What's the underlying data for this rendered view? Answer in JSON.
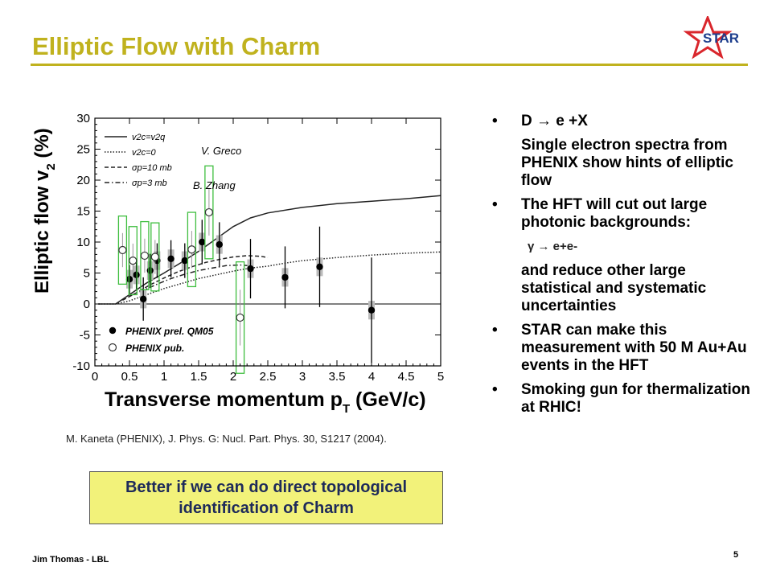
{
  "slide": {
    "title": "Elliptic Flow with Charm",
    "logo_text": "STAR",
    "citation": "M. Kaneta (PHENIX), J. Phys. G: Nucl. Part. Phys. 30, S1217 (2004).",
    "note": "Better if we can do direct topological identification of Charm",
    "footer_left": "Jim Thomas - LBL",
    "page_number": "5",
    "colors": {
      "title": "#c0b21e",
      "note_bg": "#f2f27a",
      "note_text": "#1e2a5a",
      "logo": "#d9262c"
    }
  },
  "bullets": {
    "b1": "D → e +X",
    "b1_sub": "Single electron spectra from PHENIX show hints of elliptic flow",
    "b2": "The HFT will cut out large photonic backgrounds:",
    "b2_sub": "γ → e+e-",
    "b2_sub2": "and reduce other large statistical and systematic uncertainties",
    "b3": "STAR can make this measurement with 50 M Au+Au events in the HFT",
    "b4": "Smoking gun for thermalization at RHIC!"
  },
  "chart_data": {
    "type": "scatter",
    "xlabel": "Transverse momentum p",
    "xlabel_sub": "T",
    "xlabel_unit": " (GeV/c)",
    "ylabel": "Elliptic flow v",
    "ylabel_sub": "2",
    "ylabel_unit": " (%)",
    "xlim": [
      0,
      5
    ],
    "ylim": [
      -10,
      30
    ],
    "xticks": [
      "0",
      "0.5",
      "1",
      "1.5",
      "2",
      "2.5",
      "3",
      "3.5",
      "4",
      "4.5",
      "5"
    ],
    "yticks": [
      "-10",
      "-5",
      "0",
      "5",
      "10",
      "15",
      "20",
      "25",
      "30"
    ],
    "model_authors": [
      "V. Greco",
      "B. Zhang"
    ],
    "curve_legend": [
      "v2c=v2q",
      "v2c=0",
      "σp=10 mb",
      "σp=3 mb"
    ],
    "series": [
      {
        "name": "PHENIX prel. QM05",
        "marker": "filled-circle",
        "points": [
          {
            "x": 0.5,
            "y": 4.0,
            "err": 2.3
          },
          {
            "x": 0.6,
            "y": 4.7,
            "err": 2.3
          },
          {
            "x": 0.7,
            "y": 0.8,
            "err": 3.5
          },
          {
            "x": 0.8,
            "y": 5.4,
            "err": 2.7
          },
          {
            "x": 0.9,
            "y": 7.0,
            "err": 2.8
          },
          {
            "x": 1.1,
            "y": 7.3,
            "err": 3.0
          },
          {
            "x": 1.3,
            "y": 7.0,
            "err": 2.8
          },
          {
            "x": 1.55,
            "y": 10.0,
            "err": 3.6
          },
          {
            "x": 1.8,
            "y": 9.6,
            "err": 3.6
          },
          {
            "x": 2.25,
            "y": 5.7,
            "err": 4.8
          },
          {
            "x": 2.75,
            "y": 4.3,
            "err": 5.0
          },
          {
            "x": 3.25,
            "y": 6.0,
            "err": 6.5
          },
          {
            "x": 4.0,
            "y": -1.0,
            "err": 8.5
          }
        ]
      },
      {
        "name": "PHENIX pub.",
        "marker": "open-circle",
        "points": [
          {
            "x": 0.4,
            "y": 8.7,
            "err": 5.5
          },
          {
            "x": 0.55,
            "y": 7.0,
            "err": 5.5
          },
          {
            "x": 0.72,
            "y": 7.8,
            "err": 5.5
          },
          {
            "x": 0.87,
            "y": 7.6,
            "err": 5.5
          },
          {
            "x": 1.4,
            "y": 8.8,
            "err": 6.0
          },
          {
            "x": 1.65,
            "y": 14.8,
            "err": 7.5
          },
          {
            "x": 2.1,
            "y": -2.2,
            "err": 9.0
          }
        ]
      }
    ],
    "curves": [
      {
        "name": "v2c=v2q",
        "style": "solid",
        "points": [
          [
            0.05,
            0
          ],
          [
            0.3,
            0
          ],
          [
            0.5,
            1.5
          ],
          [
            0.75,
            3.4
          ],
          [
            1,
            5
          ],
          [
            1.25,
            6.7
          ],
          [
            1.5,
            8.5
          ],
          [
            1.75,
            10.5
          ],
          [
            2,
            12.5
          ],
          [
            2.25,
            13.9
          ],
          [
            2.5,
            14.7
          ],
          [
            3,
            15.6
          ],
          [
            3.5,
            16.2
          ],
          [
            4,
            16.6
          ],
          [
            4.5,
            17
          ],
          [
            5,
            17.5
          ]
        ]
      },
      {
        "name": "v2c=0",
        "style": "dotted",
        "points": [
          [
            0.05,
            0
          ],
          [
            0.3,
            0
          ],
          [
            0.5,
            0.5
          ],
          [
            0.75,
            1.5
          ],
          [
            1,
            2.5
          ],
          [
            1.25,
            3.3
          ],
          [
            1.5,
            4.1
          ],
          [
            1.75,
            4.7
          ],
          [
            2,
            5.3
          ],
          [
            2.25,
            5.8
          ],
          [
            2.5,
            6.1
          ],
          [
            2.75,
            6.6
          ],
          [
            3,
            7
          ],
          [
            3.5,
            7.5
          ],
          [
            4,
            7.9
          ],
          [
            4.5,
            8.2
          ],
          [
            5,
            8.4
          ]
        ]
      },
      {
        "name": "σp=10 mb",
        "style": "dashed",
        "points": [
          [
            0.4,
            0.6
          ],
          [
            0.6,
            1.8
          ],
          [
            0.8,
            3.1
          ],
          [
            1,
            4.2
          ],
          [
            1.2,
            5.2
          ],
          [
            1.4,
            6.0
          ],
          [
            1.6,
            6.7
          ],
          [
            1.8,
            7.2
          ],
          [
            2,
            7.6
          ],
          [
            2.2,
            7.8
          ],
          [
            2.4,
            7.7
          ],
          [
            2.5,
            7.5
          ]
        ]
      },
      {
        "name": "σp=3 mb",
        "style": "dashdot",
        "points": [
          [
            0.5,
            1.3
          ],
          [
            0.7,
            2.2
          ],
          [
            0.9,
            3.2
          ],
          [
            1.1,
            4.1
          ],
          [
            1.3,
            4.8
          ],
          [
            1.5,
            5.4
          ],
          [
            1.7,
            5.8
          ],
          [
            1.9,
            6.2
          ],
          [
            2.1,
            6.3
          ],
          [
            2.3,
            6.1
          ]
        ]
      }
    ]
  }
}
